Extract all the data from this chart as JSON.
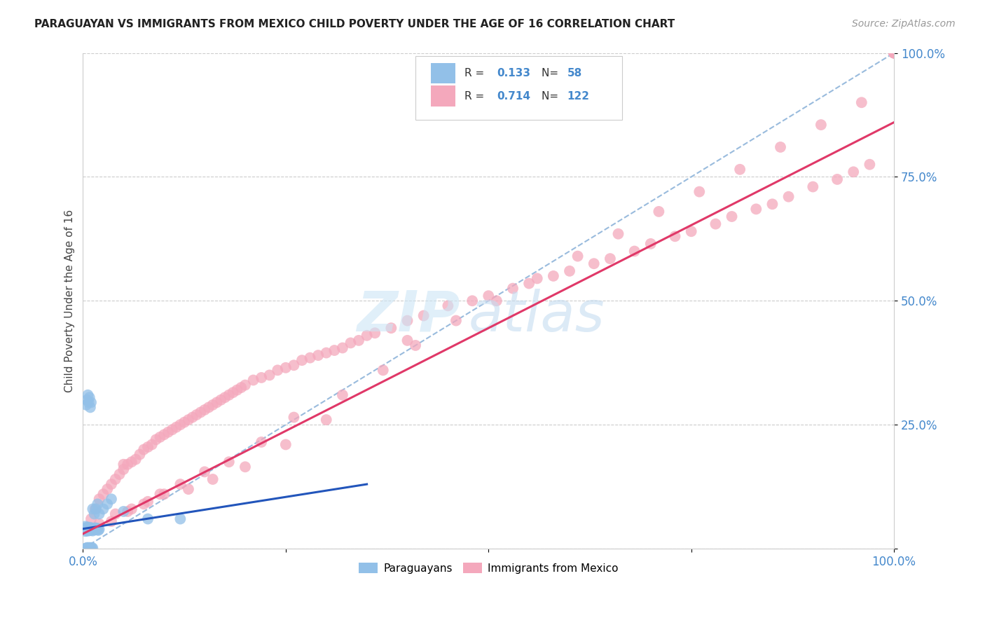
{
  "title": "PARAGUAYAN VS IMMIGRANTS FROM MEXICO CHILD POVERTY UNDER THE AGE OF 16 CORRELATION CHART",
  "source": "Source: ZipAtlas.com",
  "ylabel": "Child Poverty Under the Age of 16",
  "xlim": [
    0,
    1
  ],
  "ylim": [
    0,
    1
  ],
  "xticks": [
    0.0,
    0.25,
    0.5,
    0.75,
    1.0
  ],
  "yticks": [
    0.0,
    0.25,
    0.5,
    0.75,
    1.0
  ],
  "xticklabels": [
    "0.0%",
    "",
    "",
    "",
    "100.0%"
  ],
  "yticklabels": [
    "",
    "25.0%",
    "50.0%",
    "75.0%",
    "100.0%"
  ],
  "legend_r_blue": "0.133",
  "legend_n_blue": "58",
  "legend_r_pink": "0.714",
  "legend_n_pink": "122",
  "blue_color": "#92C0E8",
  "pink_color": "#F4A8BC",
  "blue_line_color": "#2255BB",
  "pink_line_color": "#E03868",
  "dash_color": "#99BBDD",
  "tick_color": "#4488CC",
  "grid_color": "#CCCCCC",
  "blue_line": [
    [
      0.0,
      0.04
    ],
    [
      0.35,
      0.13
    ]
  ],
  "pink_line": [
    [
      0.0,
      0.03
    ],
    [
      1.0,
      0.86
    ]
  ],
  "dash_line": [
    [
      0.0,
      0.0
    ],
    [
      1.0,
      1.0
    ]
  ],
  "blue_x": [
    0.002,
    0.003,
    0.003,
    0.004,
    0.004,
    0.005,
    0.005,
    0.005,
    0.006,
    0.006,
    0.007,
    0.007,
    0.008,
    0.008,
    0.009,
    0.009,
    0.01,
    0.01,
    0.01,
    0.011,
    0.012,
    0.013,
    0.014,
    0.015,
    0.015,
    0.016,
    0.017,
    0.018,
    0.019,
    0.02,
    0.003,
    0.004,
    0.005,
    0.006,
    0.007,
    0.008,
    0.009,
    0.01,
    0.011,
    0.012,
    0.004,
    0.005,
    0.006,
    0.007,
    0.008,
    0.009,
    0.01,
    0.012,
    0.014,
    0.016,
    0.018,
    0.02,
    0.025,
    0.03,
    0.035,
    0.05,
    0.08,
    0.12
  ],
  "blue_y": [
    0.04,
    0.045,
    0.035,
    0.042,
    0.038,
    0.04,
    0.036,
    0.043,
    0.038,
    0.042,
    0.04,
    0.036,
    0.038,
    0.043,
    0.039,
    0.041,
    0.037,
    0.042,
    0.038,
    0.04,
    0.036,
    0.041,
    0.038,
    0.042,
    0.039,
    0.04,
    0.038,
    0.041,
    0.037,
    0.039,
    0.0,
    0.001,
    0.002,
    0.001,
    0.002,
    0.001,
    0.002,
    0.001,
    0.002,
    0.001,
    0.29,
    0.3,
    0.31,
    0.295,
    0.305,
    0.285,
    0.295,
    0.08,
    0.07,
    0.08,
    0.09,
    0.07,
    0.08,
    0.09,
    0.1,
    0.075,
    0.06,
    0.06
  ],
  "pink_x": [
    0.01,
    0.015,
    0.02,
    0.025,
    0.03,
    0.035,
    0.04,
    0.045,
    0.05,
    0.055,
    0.06,
    0.065,
    0.07,
    0.075,
    0.08,
    0.085,
    0.09,
    0.095,
    0.1,
    0.105,
    0.11,
    0.115,
    0.12,
    0.125,
    0.13,
    0.135,
    0.14,
    0.145,
    0.15,
    0.155,
    0.16,
    0.165,
    0.17,
    0.175,
    0.18,
    0.185,
    0.19,
    0.195,
    0.2,
    0.21,
    0.22,
    0.23,
    0.24,
    0.25,
    0.26,
    0.27,
    0.28,
    0.29,
    0.3,
    0.31,
    0.32,
    0.33,
    0.34,
    0.35,
    0.36,
    0.38,
    0.4,
    0.42,
    0.45,
    0.48,
    0.5,
    0.53,
    0.55,
    0.58,
    0.6,
    0.63,
    0.65,
    0.68,
    0.7,
    0.73,
    0.75,
    0.78,
    0.8,
    0.83,
    0.85,
    0.87,
    0.9,
    0.93,
    0.95,
    0.97,
    0.02,
    0.04,
    0.06,
    0.08,
    0.1,
    0.13,
    0.16,
    0.2,
    0.25,
    0.3,
    0.035,
    0.055,
    0.075,
    0.095,
    0.12,
    0.15,
    0.18,
    0.22,
    0.26,
    0.32,
    0.37,
    0.41,
    0.46,
    0.51,
    0.56,
    0.61,
    0.66,
    0.71,
    0.76,
    0.81,
    0.86,
    0.91,
    0.96,
    1.0,
    1.0,
    1.0,
    1.0,
    1.0,
    1.0,
    1.0,
    0.05,
    0.4
  ],
  "pink_y": [
    0.06,
    0.08,
    0.1,
    0.11,
    0.12,
    0.13,
    0.14,
    0.15,
    0.16,
    0.17,
    0.175,
    0.18,
    0.19,
    0.2,
    0.205,
    0.21,
    0.22,
    0.225,
    0.23,
    0.235,
    0.24,
    0.245,
    0.25,
    0.255,
    0.26,
    0.265,
    0.27,
    0.275,
    0.28,
    0.285,
    0.29,
    0.295,
    0.3,
    0.305,
    0.31,
    0.315,
    0.32,
    0.325,
    0.33,
    0.34,
    0.345,
    0.35,
    0.36,
    0.365,
    0.37,
    0.38,
    0.385,
    0.39,
    0.395,
    0.4,
    0.405,
    0.415,
    0.42,
    0.43,
    0.435,
    0.445,
    0.46,
    0.47,
    0.49,
    0.5,
    0.51,
    0.525,
    0.535,
    0.55,
    0.56,
    0.575,
    0.585,
    0.6,
    0.615,
    0.63,
    0.64,
    0.655,
    0.67,
    0.685,
    0.695,
    0.71,
    0.73,
    0.745,
    0.76,
    0.775,
    0.05,
    0.07,
    0.08,
    0.095,
    0.11,
    0.12,
    0.14,
    0.165,
    0.21,
    0.26,
    0.055,
    0.075,
    0.09,
    0.11,
    0.13,
    0.155,
    0.175,
    0.215,
    0.265,
    0.31,
    0.36,
    0.41,
    0.46,
    0.5,
    0.545,
    0.59,
    0.635,
    0.68,
    0.72,
    0.765,
    0.81,
    0.855,
    0.9,
    1.0,
    1.0,
    1.0,
    1.0,
    1.0,
    1.0,
    1.0,
    0.17,
    0.42
  ]
}
